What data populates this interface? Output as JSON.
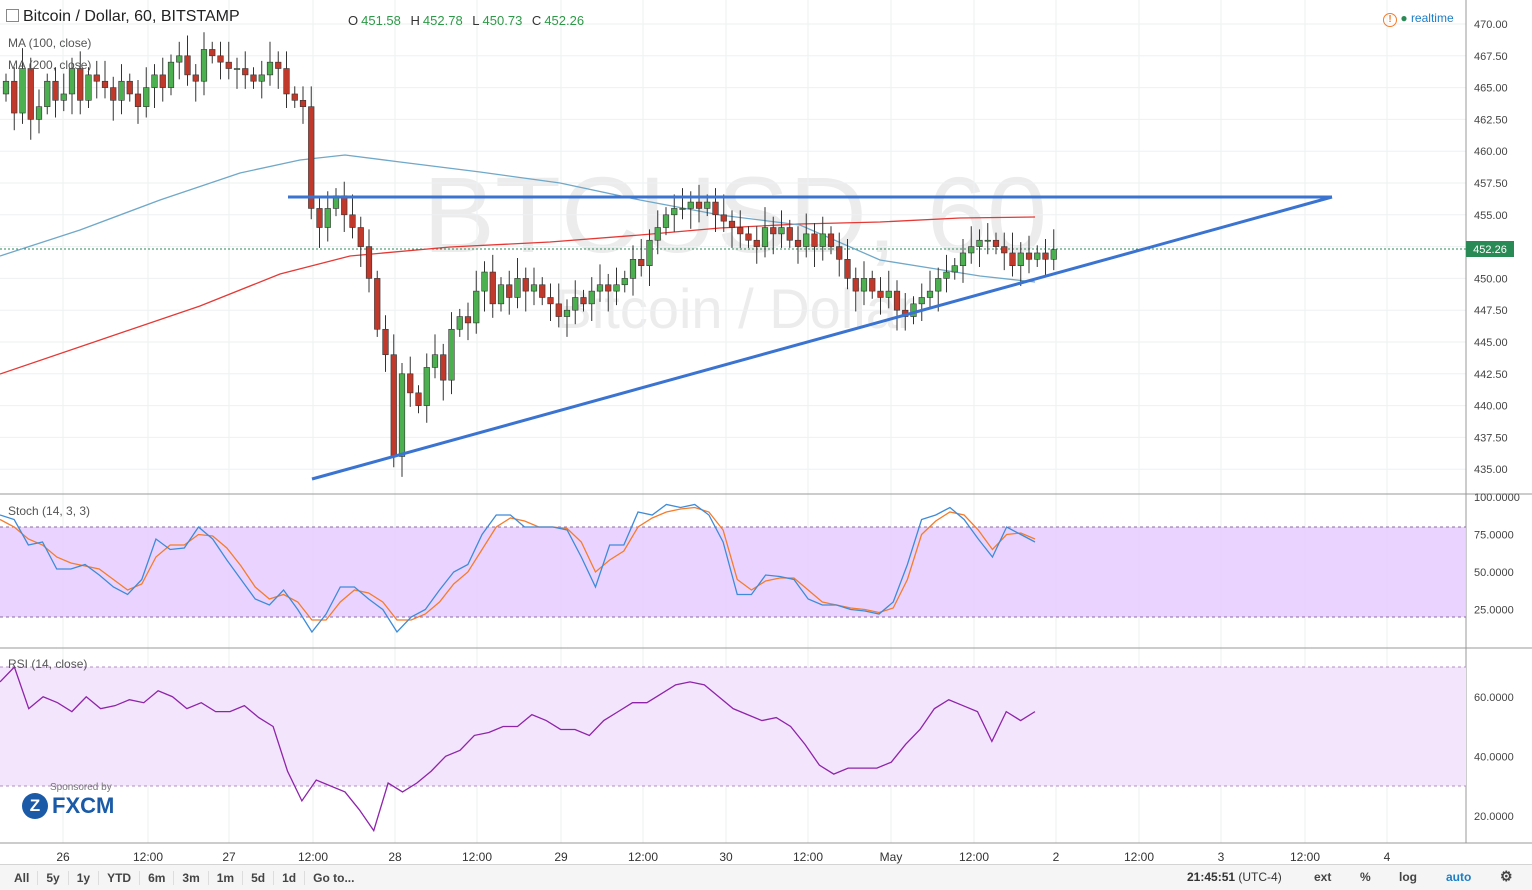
{
  "header": {
    "title": "Bitcoin / Dollar, 60, BITSTAMP",
    "ohlc": {
      "o_label": "O",
      "o": "451.58",
      "h_label": "H",
      "h": "452.78",
      "l_label": "L",
      "l": "450.73",
      "c_label": "C",
      "c": "452.26"
    },
    "realtime": "realtime"
  },
  "indicators": {
    "ma100": "MA (100, close)",
    "ma200": "MA (200, close)",
    "stoch": "Stoch (14, 3, 3)",
    "rsi": "RSI (14, close)"
  },
  "watermark": {
    "main": "BTCUSD, 60",
    "sub": "Bitcoin / Dollar"
  },
  "sponsor": {
    "text": "Sponsored by",
    "brand": "FXCM"
  },
  "bottom": {
    "timeframes": [
      "All",
      "5y",
      "1y",
      "YTD",
      "6m",
      "3m",
      "1m",
      "5d",
      "1d"
    ],
    "goto": "Go to...",
    "clock": "21:45:51",
    "tz": "(UTC-4)",
    "ext": "ext",
    "pct": "%",
    "log": "log",
    "auto": "auto"
  },
  "colors": {
    "up": "#4caf50",
    "down": "#c0392b",
    "ma100": "#6fa8c8",
    "ma200": "#e53935",
    "trend": "#3b73d1",
    "stochK": "#3d8bd9",
    "stochD": "#f57c2b",
    "rsi": "#8e24aa",
    "stochBand": "#e6ccff",
    "rsiBand": "#f3e5fc",
    "lastPrice": "#2a8a56"
  },
  "chart_data": [
    {
      "type": "candlestick",
      "title": "Bitcoin / Dollar, 60, BITSTAMP",
      "x_ticks": [
        "26",
        "12:00",
        "27",
        "12:00",
        "28",
        "12:00",
        "29",
        "12:00",
        "30",
        "12:00",
        "May",
        "12:00",
        "2",
        "12:00",
        "3",
        "12:00",
        "4"
      ],
      "y_ticks": [
        "470.00",
        "467.50",
        "465.00",
        "462.50",
        "460.00",
        "457.50",
        "455.00",
        "452.50",
        "450.00",
        "447.50",
        "445.00",
        "442.50",
        "440.00",
        "437.50",
        "435.00"
      ],
      "ylim": [
        434,
        471
      ],
      "last_price": "452.26",
      "close": [
        465.5,
        463,
        466.5,
        462.5,
        463.5,
        465.5,
        464,
        464.5,
        466.5,
        464,
        466,
        465.5,
        465,
        464,
        465.5,
        464.5,
        463.5,
        465,
        466,
        465,
        467,
        467.5,
        466,
        465.5,
        468,
        467.5,
        467,
        466.5,
        466.5,
        466,
        465.5,
        466,
        467,
        466.5,
        464.5,
        464,
        463.5,
        455.5,
        454,
        455.5,
        456.5,
        455,
        454,
        452.5,
        450,
        446,
        444,
        436,
        442.5,
        441,
        440,
        443,
        444,
        442,
        446,
        447,
        446.5,
        449,
        450.5,
        448,
        449.5,
        448.5,
        450,
        449,
        449.5,
        448.5,
        448,
        447,
        447.5,
        448.5,
        448,
        449,
        449.5,
        449,
        449.5,
        450,
        451.5,
        451,
        453,
        454,
        455,
        455.5,
        455.5,
        456,
        455.5,
        456,
        455,
        454.5,
        454,
        453.5,
        453,
        452.5,
        454,
        453.5,
        454,
        453,
        452.5,
        453.5,
        452.5,
        453.5,
        452.5,
        451.5,
        450,
        449,
        450,
        449,
        448.5,
        449,
        447.5,
        447,
        448,
        448.5,
        449,
        450,
        450.5,
        451,
        452,
        452.5,
        453,
        453,
        452.5,
        452,
        451,
        452,
        451.5,
        452,
        451.5,
        452.26
      ]
    },
    {
      "type": "line",
      "name": "Stoch (14, 3, 3)",
      "y_ticks": [
        "100.0000",
        "75.0000",
        "50.0000",
        "25.0000"
      ],
      "ylim": [
        0,
        100
      ],
      "bands": [
        20,
        80
      ],
      "k": [
        88,
        85,
        68,
        70,
        52,
        52,
        55,
        48,
        40,
        35,
        45,
        72,
        65,
        66,
        80,
        72,
        58,
        45,
        32,
        28,
        38,
        25,
        10,
        22,
        40,
        40,
        32,
        25,
        10,
        20,
        25,
        38,
        50,
        55,
        75,
        88,
        88,
        80,
        80,
        80,
        78,
        60,
        40,
        68,
        68,
        90,
        88,
        95,
        93,
        95,
        88,
        70,
        35,
        35,
        48,
        47,
        45,
        32,
        28,
        28,
        25,
        24,
        22,
        30,
        55,
        85,
        88,
        93,
        85,
        72,
        60,
        80,
        75,
        70
      ],
      "d": [
        85,
        80,
        72,
        68,
        60,
        56,
        54,
        52,
        45,
        38,
        42,
        60,
        68,
        68,
        75,
        74,
        66,
        54,
        40,
        32,
        35,
        30,
        18,
        18,
        30,
        38,
        36,
        30,
        18,
        18,
        22,
        30,
        42,
        50,
        65,
        80,
        86,
        84,
        80,
        80,
        79,
        70,
        50,
        58,
        64,
        80,
        86,
        90,
        92,
        93,
        90,
        78,
        45,
        38,
        44,
        46,
        46,
        38,
        30,
        28,
        26,
        25,
        23,
        26,
        45,
        75,
        84,
        90,
        88,
        78,
        65,
        75,
        76,
        72
      ]
    },
    {
      "type": "line",
      "name": "RSI (14, close)",
      "y_ticks": [
        "60.0000",
        "40.0000",
        "20.0000"
      ],
      "ylim": [
        10,
        76
      ],
      "bands": [
        30,
        70
      ],
      "rsi": [
        65,
        70,
        56,
        60,
        58,
        55,
        60,
        56,
        57,
        59,
        58,
        62,
        60,
        56,
        58,
        55,
        55,
        57,
        53,
        50,
        35,
        25,
        32,
        30,
        28,
        22,
        15,
        31,
        28,
        31,
        35,
        40,
        42,
        47,
        48,
        50,
        50,
        54,
        52,
        49,
        49,
        47,
        52,
        55,
        58,
        58,
        61,
        64,
        65,
        64,
        60,
        56,
        54,
        52,
        53,
        50,
        44,
        37,
        34,
        36,
        36,
        36,
        38,
        44,
        49,
        56,
        59,
        57,
        55,
        45,
        55,
        52,
        55
      ]
    }
  ]
}
